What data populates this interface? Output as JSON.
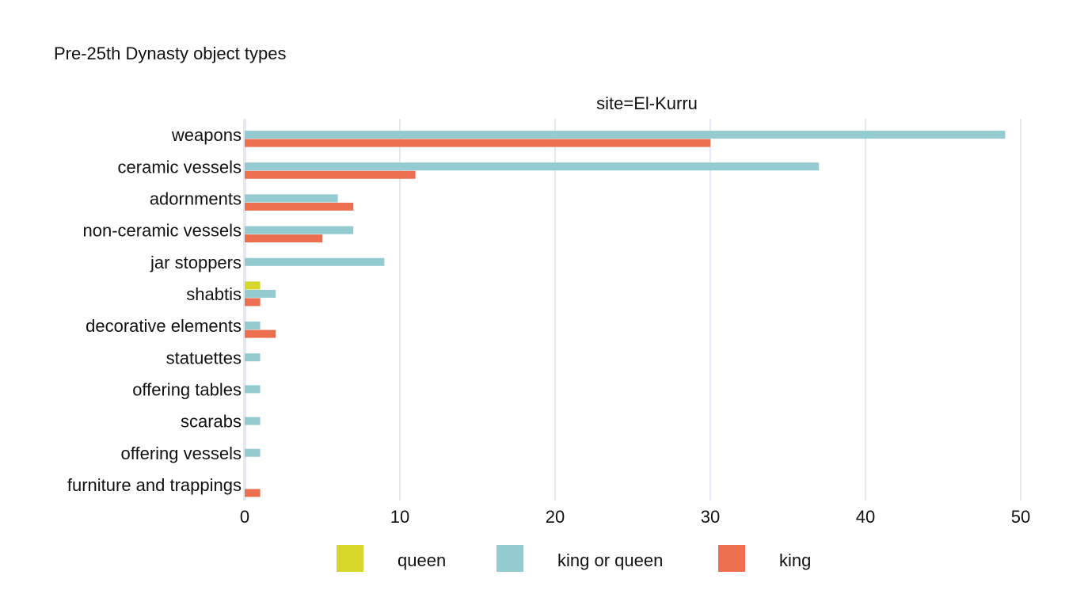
{
  "chart_data": {
    "type": "bar",
    "orientation": "horizontal",
    "title": "Pre-25th Dynasty object types",
    "facet_label": "site=El-Kurru",
    "categories": [
      "weapons",
      "ceramic vessels",
      "adornments",
      "non-ceramic vessels",
      "jar stoppers",
      "shabtis",
      "decorative elements",
      "statuettes",
      "offering tables",
      "scarabs",
      "offering vessels",
      "furniture and trappings"
    ],
    "series": [
      {
        "name": "queen",
        "color": "#d7d72a",
        "values": [
          0,
          0,
          0,
          0,
          0,
          1,
          0,
          0,
          0,
          0,
          0,
          0
        ]
      },
      {
        "name": "king or queen",
        "color": "#94cbd1",
        "values": [
          49,
          37,
          6,
          7,
          9,
          2,
          1,
          1,
          1,
          1,
          1,
          0
        ]
      },
      {
        "name": "king",
        "color": "#ec6f4f",
        "values": [
          30,
          11,
          7,
          5,
          0,
          1,
          2,
          0,
          0,
          0,
          0,
          1
        ]
      }
    ],
    "xlim": [
      0,
      50
    ],
    "xticks": [
      0,
      10,
      20,
      30,
      40,
      50
    ],
    "xtick_labels": [
      "0",
      "10",
      "20",
      "30",
      "40",
      "50"
    ],
    "xlabel": "",
    "ylabel": "",
    "grid": true,
    "legend_position": "bottom"
  }
}
